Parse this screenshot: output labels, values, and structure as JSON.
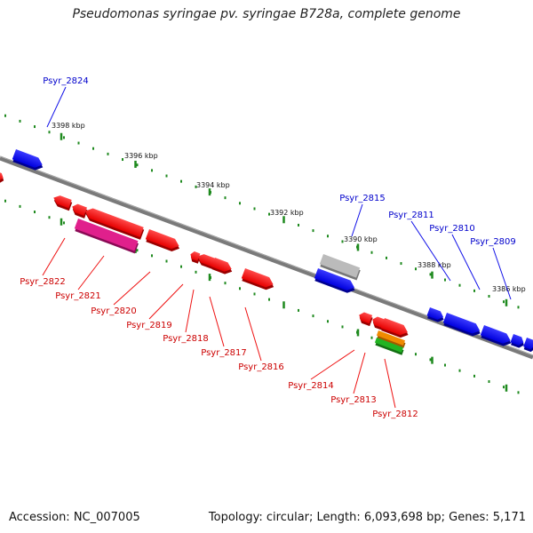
{
  "title": "Pseudomonas syringae pv. syringae B728a, complete genome",
  "footer": {
    "accession": "Accession: NC_007005",
    "topology": "Topology: circular; Length: 6,093,698 bp; Genes: 5,171"
  },
  "colors": {
    "forward_gene": "#1010e8",
    "reverse_gene": "#ee1010",
    "backbone": "#7a7a7a",
    "tick": "#1f8a1f",
    "forward_label": "#0000cc",
    "reverse_label": "#cc0000"
  },
  "scale_labels": [
    "3398 kbp",
    "3396 kbp",
    "3394 kbp",
    "3392 kbp",
    "3390 kbp",
    "3388 kbp",
    "3386 kbp"
  ],
  "forward_genes": [
    "Psyr_2824",
    "Psyr_2815",
    "Psyr_2811",
    "Psyr_2810",
    "Psyr_2809"
  ],
  "reverse_genes": [
    "Psyr_2822",
    "Psyr_2821",
    "Psyr_2820",
    "Psyr_2819",
    "Psyr_2818",
    "Psyr_2817",
    "Psyr_2816",
    "Psyr_2814",
    "Psyr_2813",
    "Psyr_2812"
  ]
}
